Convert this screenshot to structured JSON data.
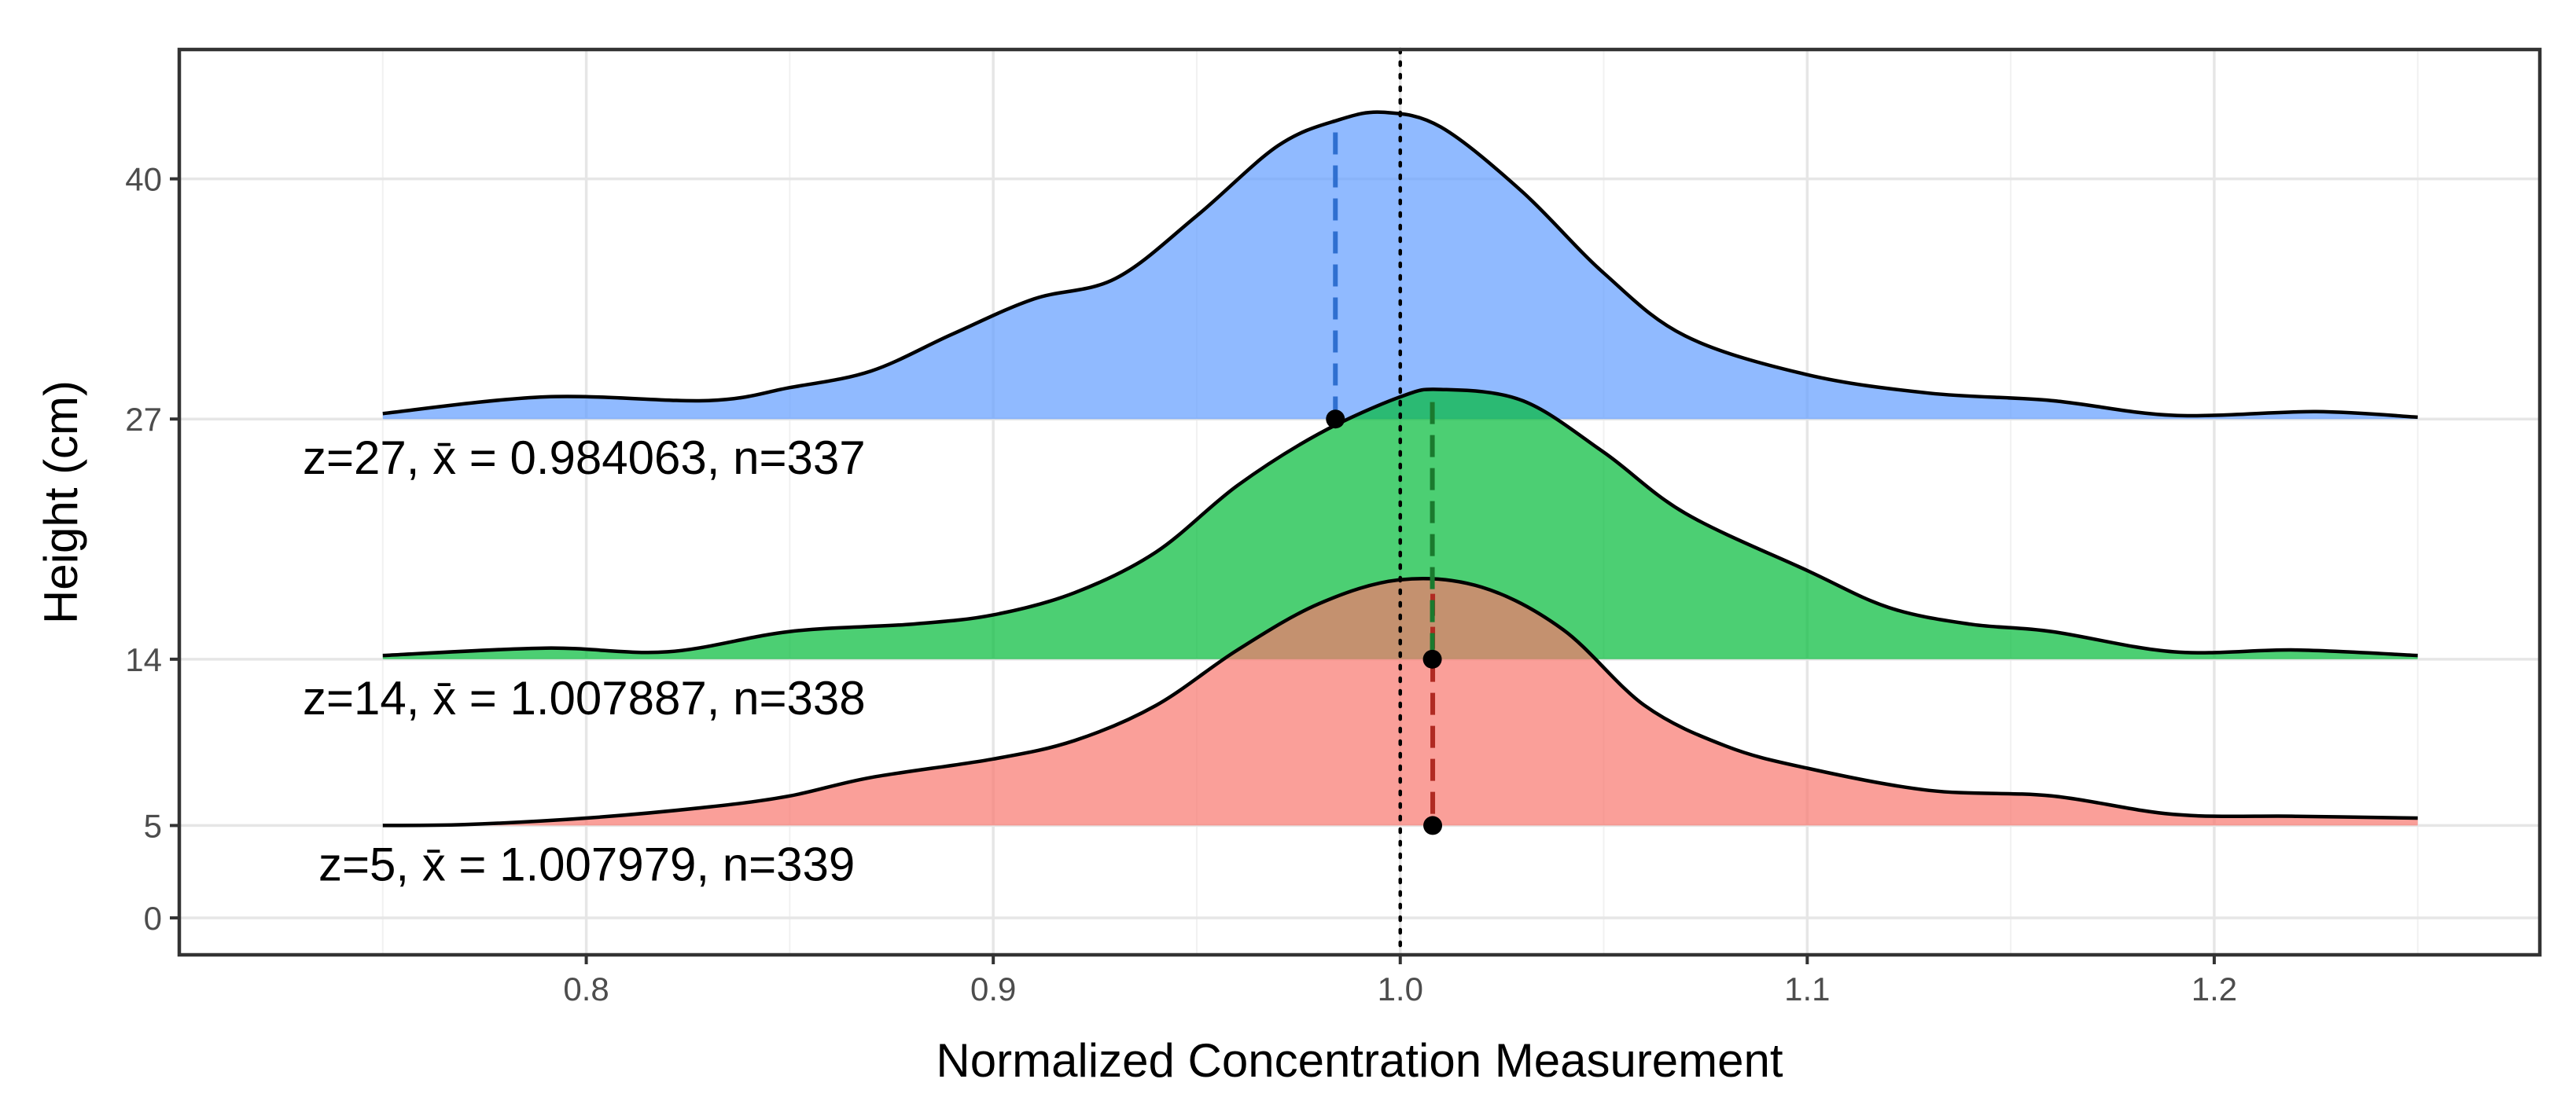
{
  "chart_data": {
    "type": "area",
    "subtype": "ridgeline-density",
    "xlabel": "Normalized Concentration Measurement",
    "ylabel": "Height (cm)",
    "xlim": [
      0.7,
      1.28
    ],
    "ylim": [
      -2,
      47
    ],
    "x_ticks": [
      0.8,
      0.9,
      1.0,
      1.1,
      1.2
    ],
    "x_tick_labels": [
      "0.8",
      "0.9",
      "1.0",
      "1.1",
      "1.2"
    ],
    "y_ticks": [
      0,
      5,
      14,
      27,
      40
    ],
    "y_tick_labels": [
      "0",
      "5",
      "14",
      "27",
      "40"
    ],
    "reference_line_x": 1.0,
    "grid": true,
    "series": [
      {
        "name": "z=5",
        "baseline": 5,
        "color": "#F8766D",
        "mean": 1.007979,
        "n": 339,
        "label_text": "z=5,  x̄ = 1.007979, n=339",
        "x": [
          0.75,
          0.77,
          0.8,
          0.83,
          0.85,
          0.87,
          0.9,
          0.92,
          0.94,
          0.96,
          0.98,
          1.0,
          1.02,
          1.04,
          1.06,
          1.08,
          1.1,
          1.13,
          1.16,
          1.19,
          1.22,
          1.25
        ],
        "y": [
          5.0,
          5.05,
          5.4,
          6.0,
          6.6,
          7.6,
          8.6,
          9.6,
          11.5,
          14.5,
          17.0,
          18.3,
          17.9,
          15.6,
          11.5,
          9.3,
          8.1,
          6.9,
          6.6,
          5.6,
          5.5,
          5.4
        ]
      },
      {
        "name": "z=14",
        "baseline": 14,
        "color": "#00BA38",
        "mean": 1.007887,
        "n": 338,
        "label_text": "z=14, x̄ =  1.007887, n=338",
        "x": [
          0.75,
          0.79,
          0.82,
          0.85,
          0.88,
          0.9,
          0.92,
          0.94,
          0.96,
          0.98,
          1.0,
          1.01,
          1.03,
          1.05,
          1.07,
          1.1,
          1.12,
          1.14,
          1.16,
          1.19,
          1.22,
          1.25
        ],
        "y": [
          14.2,
          14.6,
          14.4,
          15.5,
          15.9,
          16.4,
          17.6,
          19.8,
          23.4,
          26.2,
          28.2,
          28.6,
          28.0,
          25.2,
          21.9,
          18.8,
          16.8,
          15.9,
          15.5,
          14.4,
          14.5,
          14.2
        ]
      },
      {
        "name": "z=27",
        "baseline": 27,
        "color": "#619CFF",
        "mean": 0.984063,
        "n": 337,
        "label_text": "z=27, x̄ =  0.984063, n=337",
        "x": [
          0.75,
          0.79,
          0.83,
          0.85,
          0.87,
          0.89,
          0.91,
          0.93,
          0.95,
          0.97,
          0.985,
          0.996,
          1.01,
          1.03,
          1.05,
          1.07,
          1.1,
          1.13,
          1.16,
          1.19,
          1.225,
          1.25
        ],
        "y": [
          27.3,
          28.2,
          28.0,
          28.7,
          29.6,
          31.6,
          33.5,
          34.6,
          38.0,
          41.8,
          43.2,
          43.6,
          42.8,
          39.3,
          34.9,
          31.5,
          29.4,
          28.4,
          28.0,
          27.2,
          27.4,
          27.1
        ]
      }
    ]
  }
}
